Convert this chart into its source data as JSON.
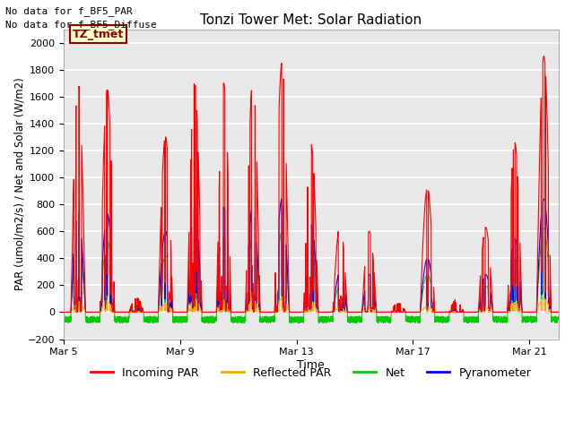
{
  "title": "Tonzi Tower Met: Solar Radiation",
  "xlabel": "Time",
  "ylabel": "PAR (umol/m2/s) / Net and Solar (W/m2)",
  "ylim": [
    -200,
    2100
  ],
  "yticks": [
    -200,
    0,
    200,
    400,
    600,
    800,
    1000,
    1200,
    1400,
    1600,
    1800,
    2000
  ],
  "no_data_text1": "No data for f_BF5_PAR",
  "no_data_text2": "No data for f_BF5_Diffuse",
  "label_box_text": "TZ_tmet",
  "label_box_color": "#ffffcc",
  "label_box_border": "#8b0000",
  "label_box_text_color": "#8b0000",
  "legend_entries": [
    "Incoming PAR",
    "Reflected PAR",
    "Net",
    "Pyranometer"
  ],
  "legend_colors": [
    "#ff0000",
    "#ffa500",
    "#00cc00",
    "#0000ff"
  ],
  "line_colors": {
    "incoming_par": "#ff0000",
    "reflected_par": "#ffa500",
    "net": "#00cc00",
    "pyranometer": "#0000ff"
  },
  "plot_bg_color": "#e8e8e8",
  "fig_bg_color": "#ffffff",
  "grid_color": "#ffffff",
  "num_days": 17,
  "x_tick_positions": [
    0,
    4,
    8,
    12,
    16
  ],
  "x_tick_labels": [
    "Mar 5",
    "Mar 9",
    "Mar 13",
    "Mar 17",
    "Mar 21"
  ]
}
